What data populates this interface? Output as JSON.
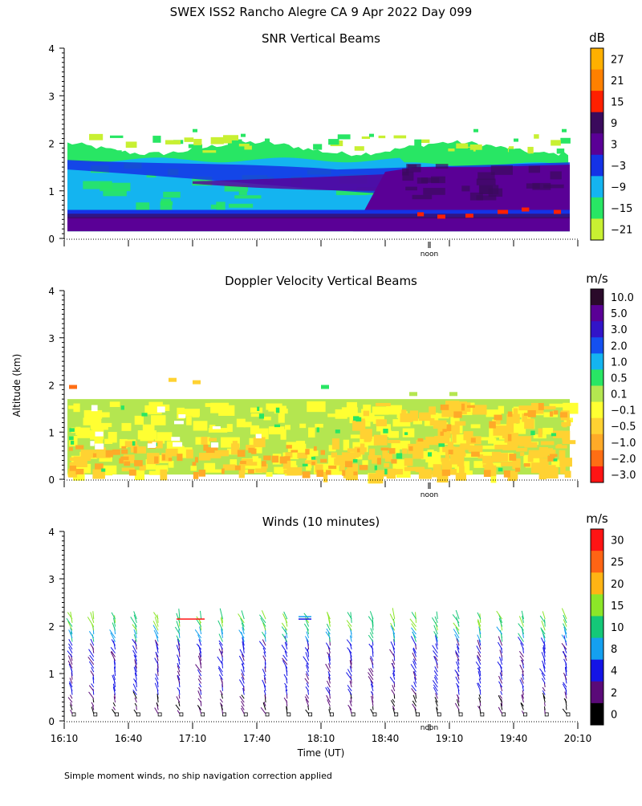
{
  "header": {
    "title": "SWEX ISS2 Rancho Alegre CA   9 Apr 2022 Day 099"
  },
  "axes": {
    "ylabel": "Altitude (km)",
    "xlabel": "Time (UT)",
    "yticks": [
      "0",
      "1",
      "2",
      "3",
      "4"
    ],
    "xticks": [
      "16:10",
      "16:40",
      "17:10",
      "17:40",
      "18:10",
      "18:40",
      "19:10",
      "19:40",
      "20:10"
    ],
    "noon_label": "noon"
  },
  "footer": {
    "note": "Simple moment winds, no ship navigation correction applied"
  },
  "chart_data": [
    {
      "type": "heatmap",
      "title": "SNR Vertical Beams",
      "colorbar": {
        "unit": "dB",
        "labels": [
          "27",
          "21",
          "15",
          "9",
          "3",
          "−3",
          "−9",
          "−15",
          "−21"
        ],
        "colors": [
          "#ffb000",
          "#ff8000",
          "#ff2000",
          "#3a0a5c",
          "#5a0096",
          "#1432e6",
          "#14b4f0",
          "#28e664",
          "#c8f032"
        ]
      },
      "x_range": [
        "16:10",
        "20:10"
      ],
      "y_range_km": [
        0,
        4
      ],
      "layers": [
        {
          "label": "-21",
          "bottom_km": 1.75,
          "top_km": 2.0,
          "color": "#c8f032"
        },
        {
          "label": "-9",
          "bottom_km": 0.2,
          "top_km": 1.75,
          "color": "#14b4f0"
        },
        {
          "label": "3",
          "bottom_km": 0.1,
          "top_km": 0.6,
          "color": "#5a0096"
        },
        {
          "label": "15",
          "bottom_km": 0.5,
          "top_km": 0.6,
          "color": "#ff2000"
        }
      ]
    },
    {
      "type": "heatmap",
      "title": "Doppler Velocity Vertical Beams",
      "colorbar": {
        "unit": "m/s",
        "labels": [
          "10.0",
          "5.0",
          "3.0",
          "2.0",
          "1.0",
          "0.5",
          "0.1",
          "−0.1",
          "−0.5",
          "−1.0",
          "−2.0",
          "−3.0"
        ],
        "colors": [
          "#2a0a2a",
          "#5a0096",
          "#3214c8",
          "#1450f0",
          "#14b4f0",
          "#28e664",
          "#b4e650",
          "#ffff32",
          "#ffd232",
          "#ffaa28",
          "#ff6e14",
          "#ff1414"
        ]
      },
      "x_range": [
        "16:10",
        "20:10"
      ],
      "y_range_km": [
        0,
        4
      ],
      "layers": [
        {
          "label": "-0.1",
          "bottom_km": 0.1,
          "top_km": 1.7,
          "color": "#ffff32"
        },
        {
          "label": "-0.5",
          "bottom_km": 0.1,
          "top_km": 0.8,
          "color": "#ffd232"
        },
        {
          "label": "0.1",
          "bottom_km": 0.9,
          "top_km": 1.7,
          "color": "#b4e650"
        }
      ]
    },
    {
      "type": "scatter",
      "title": "Winds (10 minutes)",
      "colorbar": {
        "unit": "m/s",
        "labels": [
          "30",
          "25",
          "20",
          "15",
          "10",
          "8",
          "4",
          "2",
          "0"
        ],
        "colors": [
          "#ff1414",
          "#ff6414",
          "#ffb414",
          "#8ce628",
          "#14c878",
          "#14a0f0",
          "#1414e6",
          "#5a0a78",
          "#000000"
        ]
      },
      "x_range": [
        "16:10",
        "20:10"
      ],
      "y_range_km": [
        0,
        4
      ],
      "profiles": 24,
      "interval_minutes": 10,
      "max_altitude_km": 2.2
    }
  ]
}
